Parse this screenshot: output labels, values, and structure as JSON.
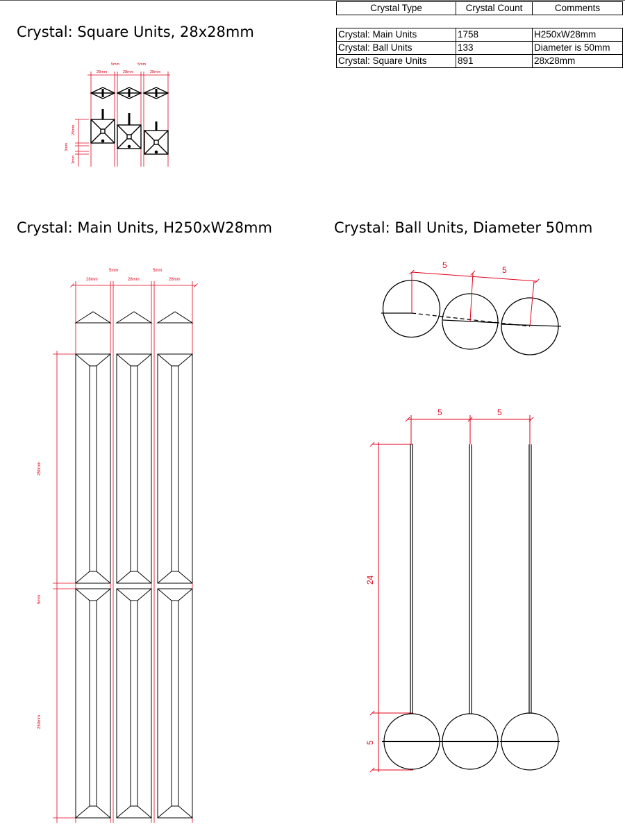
{
  "table": {
    "headers": [
      "Crystal Type",
      "Crystal Count",
      "Comments"
    ],
    "rows": [
      [
        "Crystal: Main Units",
        "1758",
        "H250xW28mm"
      ],
      [
        "Crystal: Ball Units",
        "133",
        "Diameter is 50mm"
      ],
      [
        "Crystal: Square Units",
        "891",
        "28x28mm"
      ]
    ]
  },
  "sections": {
    "square": {
      "title": "Crystal: Square Units, 28x28mm",
      "dims": {
        "width": "28mm",
        "gap": "5mm",
        "height": "28mm",
        "offset": "3mm"
      }
    },
    "main": {
      "title": "Crystal: Main Units, H250xW28mm",
      "dims": {
        "width": "28mm",
        "gap": "5mm",
        "height": "250mm"
      }
    },
    "ball": {
      "title": "Crystal: Ball Units, Diameter 50mm",
      "dims": {
        "spacing": "5",
        "drop": "24",
        "ball": "5"
      }
    }
  },
  "colors": {
    "dimension": "#e0001a",
    "line": "#000000"
  }
}
